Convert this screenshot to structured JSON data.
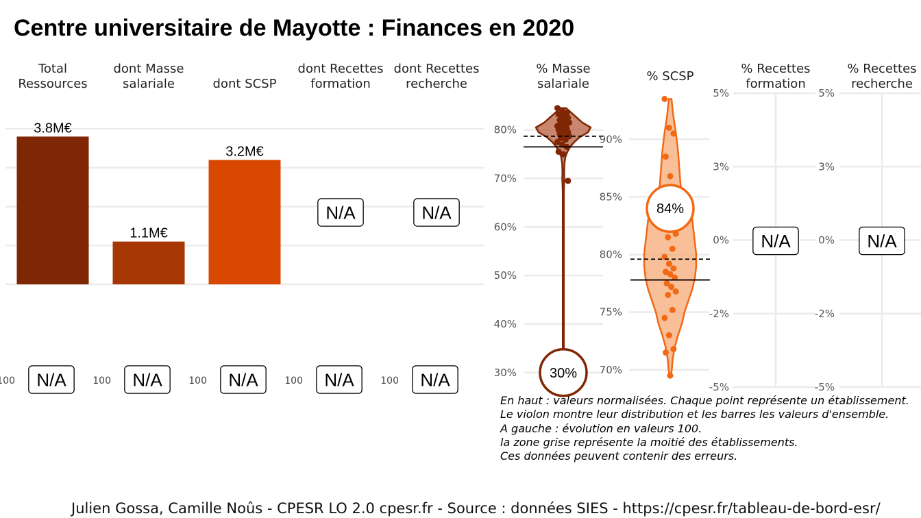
{
  "title": "Centre universitaire de Mayotte  :  Finances en 2020",
  "colors": {
    "dark_brown": "#7f2704",
    "brown": "#a63603",
    "orange": "#d94801",
    "light_orange": "#f16913",
    "violet_fill_1": "#b65f3e",
    "violet_fill_2": "#f7a977",
    "grid": "#ebebeb"
  },
  "chart_data": [
    {
      "type": "bar",
      "categories": [
        "Total\nRessources",
        "dont Masse\nsalariale",
        "dont SCSP",
        "dont Recettes\nformation",
        "dont Recettes\nrecherche"
      ],
      "values": [
        3.8,
        1.1,
        3.2,
        null,
        null
      ],
      "data_labels": [
        "3.8M€",
        "1.1M€",
        "3.2M€",
        "N/A",
        "N/A"
      ],
      "unit": "M€",
      "colors": [
        "#7f2704",
        "#a63603",
        "#d94801",
        null,
        null
      ],
      "ylim": [
        0,
        4.0
      ],
      "grid": true
    },
    {
      "type": "line",
      "title": "évolution en valeurs 100",
      "categories": [
        "Total\nRessources",
        "dont Masse\nsalariale",
        "dont SCSP",
        "dont Recettes\nformation",
        "dont Recettes\nrecherche"
      ],
      "axis_tick": "100",
      "data_labels": [
        "N/A",
        "N/A",
        "N/A",
        "N/A",
        "N/A"
      ]
    },
    {
      "type": "scatter",
      "panels": [
        {
          "name": "% Masse\nsalariale",
          "ylim": [
            27,
            87
          ],
          "yticks": [
            30,
            40,
            50,
            60,
            70,
            80
          ],
          "tick_labels": [
            "30%",
            "40%",
            "50%",
            "60%",
            "70%",
            "80%"
          ],
          "value": 30,
          "value_label": "30%",
          "overall_line": 76.5,
          "median_line": 78.7,
          "points": [
            84.5,
            84,
            83.5,
            83.2,
            82.8,
            82.5,
            82,
            81.8,
            81.5,
            81.2,
            81,
            80.8,
            80.5,
            80.3,
            80,
            79.8,
            79.5,
            79.2,
            79,
            78.7,
            78.3,
            78,
            77.5,
            77,
            76.5,
            75.5,
            75,
            69.5
          ],
          "violin": [
            [
              84.5,
              0.1
            ],
            [
              83.5,
              0.3
            ],
            [
              82.5,
              0.5
            ],
            [
              81.5,
              0.7
            ],
            [
              80.5,
              1.0
            ],
            [
              79.5,
              0.9
            ],
            [
              78.5,
              0.6
            ],
            [
              77.5,
              0.4
            ],
            [
              76.5,
              0.25
            ],
            [
              75.5,
              0.15
            ],
            [
              74.5,
              0.08
            ],
            [
              73,
              0.04
            ],
            [
              71,
              0.03
            ],
            [
              70,
              0.04
            ],
            [
              69,
              0.03
            ],
            [
              67,
              0.02
            ],
            [
              60,
              0.02
            ],
            [
              50,
              0.02
            ],
            [
              40,
              0.02
            ],
            [
              31,
              0.02
            ]
          ]
        },
        {
          "name": "% SCSP",
          "ylim": [
            68.5,
            94
          ],
          "yticks": [
            70,
            75,
            80,
            85,
            90
          ],
          "tick_labels": [
            "70%",
            "75%",
            "80%",
            "85%",
            "90%"
          ],
          "value": 84,
          "value_label": "84%",
          "overall_line": 77.8,
          "median_line": 79.6,
          "points": [
            93.5,
            91,
            90.5,
            88.5,
            86.8,
            85,
            83.5,
            82.5,
            81.8,
            81.5,
            80.5,
            79.8,
            79.2,
            78.8,
            78.5,
            78.3,
            78,
            77.5,
            77.2,
            76.8,
            76.5,
            75.2,
            74.5,
            73,
            71.8,
            71.5,
            69.5
          ],
          "violin": [
            [
              93.5,
              0.05
            ],
            [
              92,
              0.12
            ],
            [
              90.5,
              0.22
            ],
            [
              89,
              0.3
            ],
            [
              87.5,
              0.35
            ],
            [
              86,
              0.4
            ],
            [
              85,
              0.55
            ],
            [
              84,
              0.75
            ],
            [
              83,
              0.85
            ],
            [
              82,
              0.9
            ],
            [
              81,
              0.95
            ],
            [
              80,
              1.0
            ],
            [
              79,
              1.0
            ],
            [
              78,
              0.95
            ],
            [
              77,
              0.85
            ],
            [
              76,
              0.7
            ],
            [
              75,
              0.55
            ],
            [
              74,
              0.45
            ],
            [
              73,
              0.3
            ],
            [
              72,
              0.18
            ],
            [
              71,
              0.1
            ],
            [
              70,
              0.06
            ],
            [
              69.5,
              0.03
            ]
          ]
        },
        {
          "name": "% Recettes\nformation",
          "ylim": [
            -5,
            5
          ],
          "yticks": [
            -5,
            -2.5,
            0,
            2.5,
            5
          ],
          "tick_labels": [
            "-5%",
            "-2%",
            "0%",
            "3%",
            "5%"
          ],
          "value_label": "N/A"
        },
        {
          "name": "% Recettes\nrecherche",
          "ylim": [
            -5,
            5
          ],
          "yticks": [
            -5,
            -2.5,
            0,
            2.5,
            5
          ],
          "tick_labels": [
            "-5%",
            "-2%",
            "0%",
            "3%",
            "5%"
          ],
          "value_label": "N/A"
        }
      ]
    }
  ],
  "note_lines": [
    "En haut : valeurs normalisées. Chaque point représente un établissement.",
    "Le violon montre leur distribution et les barres les valeurs d'ensemble.",
    "A gauche : évolution en valeurs 100.",
    "la zone grise représente la moitié des établissements.",
    "Ces données peuvent contenir des erreurs."
  ],
  "caption": "Julien Gossa, Camille Noûs - CPESR LO 2.0 cpesr.fr - Source : données SIES - https://cpesr.fr/tableau-de-bord-esr/"
}
